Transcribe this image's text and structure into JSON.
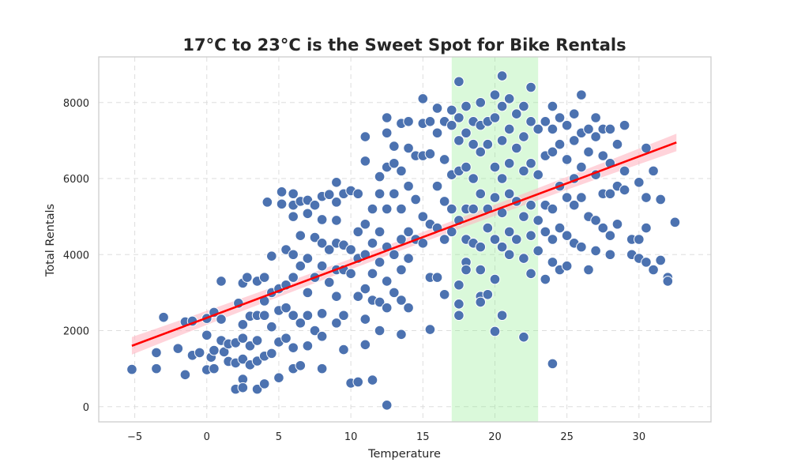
{
  "chart_data": {
    "type": "scatter",
    "title": "17°C to 23°C is the Sweet Spot for Bike Rentals",
    "xlabel": "Temperature",
    "ylabel": "Total Rentals",
    "xlim": [
      -7.5,
      35
    ],
    "ylim": [
      -400,
      9200
    ],
    "xticks": [
      -5,
      0,
      5,
      10,
      15,
      20,
      25,
      30
    ],
    "yticks": [
      0,
      2000,
      4000,
      6000,
      8000
    ],
    "grid": true,
    "highlight_band": {
      "x": [
        17,
        23
      ],
      "color": "#90ee90"
    },
    "regression_line": {
      "x": [
        -5.2,
        32.6
      ],
      "y": [
        1600,
        6950
      ],
      "color": "#ff0000"
    },
    "colors": {
      "points": "#4c72b0",
      "point_edge": "#ffffff",
      "band": "#90ee90",
      "line": "#ff0000",
      "ci": "#ffb6c1"
    },
    "points": [
      [
        -5.2,
        980
      ],
      [
        -3.0,
        2350
      ],
      [
        -3.5,
        1420
      ],
      [
        -3.5,
        1000
      ],
      [
        -2.0,
        1530
      ],
      [
        -1.5,
        840
      ],
      [
        -1.5,
        2230
      ],
      [
        -1.0,
        2250
      ],
      [
        -1.0,
        1350
      ],
      [
        -0.5,
        1420
      ],
      [
        0.0,
        970
      ],
      [
        0.0,
        1880
      ],
      [
        0.0,
        2320
      ],
      [
        0.3,
        1300
      ],
      [
        0.5,
        1000
      ],
      [
        0.5,
        2480
      ],
      [
        0.5,
        1480
      ],
      [
        1.0,
        3300
      ],
      [
        1.0,
        2300
      ],
      [
        1.0,
        1740
      ],
      [
        1.2,
        1440
      ],
      [
        1.5,
        1190
      ],
      [
        1.5,
        1650
      ],
      [
        2.0,
        460
      ],
      [
        2.0,
        1680
      ],
      [
        2.0,
        1150
      ],
      [
        2.2,
        2720
      ],
      [
        2.5,
        3250
      ],
      [
        2.5,
        2160
      ],
      [
        2.5,
        1800
      ],
      [
        2.5,
        1250
      ],
      [
        2.5,
        720
      ],
      [
        2.5,
        500
      ],
      [
        2.8,
        3400
      ],
      [
        3.0,
        2380
      ],
      [
        3.0,
        1600
      ],
      [
        3.0,
        1100
      ],
      [
        3.5,
        3300
      ],
      [
        3.5,
        2400
      ],
      [
        3.5,
        1740
      ],
      [
        3.5,
        1200
      ],
      [
        3.5,
        460
      ],
      [
        4.0,
        3400
      ],
      [
        4.0,
        2780
      ],
      [
        4.0,
        2400
      ],
      [
        4.0,
        1330
      ],
      [
        4.0,
        600
      ],
      [
        4.2,
        5380
      ],
      [
        4.5,
        3960
      ],
      [
        4.5,
        3000
      ],
      [
        4.5,
        2100
      ],
      [
        4.5,
        1400
      ],
      [
        5.0,
        3100
      ],
      [
        5.0,
        2530
      ],
      [
        5.0,
        1700
      ],
      [
        5.0,
        760
      ],
      [
        5.2,
        5650
      ],
      [
        5.2,
        5330
      ],
      [
        5.5,
        4130
      ],
      [
        5.5,
        3200
      ],
      [
        5.5,
        2600
      ],
      [
        5.5,
        1800
      ],
      [
        6.0,
        5600
      ],
      [
        6.0,
        5300
      ],
      [
        6.0,
        5000
      ],
      [
        6.0,
        4000
      ],
      [
        6.0,
        3400
      ],
      [
        6.0,
        2400
      ],
      [
        6.0,
        1550
      ],
      [
        6.0,
        1000
      ],
      [
        6.5,
        5400
      ],
      [
        6.5,
        4500
      ],
      [
        6.5,
        3700
      ],
      [
        6.5,
        2200
      ],
      [
        6.5,
        1080
      ],
      [
        7.0,
        5430
      ],
      [
        7.0,
        5080
      ],
      [
        7.0,
        3900
      ],
      [
        7.0,
        3000
      ],
      [
        7.0,
        2400
      ],
      [
        7.0,
        1600
      ],
      [
        7.5,
        5300
      ],
      [
        7.5,
        4450
      ],
      [
        7.5,
        3400
      ],
      [
        7.5,
        2000
      ],
      [
        8.0,
        5530
      ],
      [
        8.0,
        4920
      ],
      [
        8.0,
        4300
      ],
      [
        8.0,
        3700
      ],
      [
        8.0,
        2450
      ],
      [
        8.0,
        1850
      ],
      [
        8.0,
        1000
      ],
      [
        8.5,
        5580
      ],
      [
        8.5,
        4130
      ],
      [
        8.5,
        3270
      ],
      [
        9.0,
        5900
      ],
      [
        9.0,
        5380
      ],
      [
        9.0,
        4900
      ],
      [
        9.0,
        4300
      ],
      [
        9.0,
        3600
      ],
      [
        9.0,
        2900
      ],
      [
        9.0,
        2200
      ],
      [
        9.5,
        5600
      ],
      [
        9.5,
        4250
      ],
      [
        9.5,
        3600
      ],
      [
        9.5,
        2400
      ],
      [
        9.5,
        1500
      ],
      [
        10.0,
        5680
      ],
      [
        10.0,
        4130
      ],
      [
        10.0,
        3500
      ],
      [
        10.0,
        620
      ],
      [
        10.5,
        5600
      ],
      [
        10.5,
        4600
      ],
      [
        10.5,
        3900
      ],
      [
        10.5,
        2900
      ],
      [
        10.5,
        650
      ],
      [
        11.0,
        7100
      ],
      [
        11.0,
        6460
      ],
      [
        11.0,
        4800
      ],
      [
        11.0,
        4000
      ],
      [
        11.0,
        3100
      ],
      [
        11.0,
        2300
      ],
      [
        11.0,
        1630
      ],
      [
        11.5,
        5200
      ],
      [
        11.5,
        4300
      ],
      [
        11.5,
        3500
      ],
      [
        11.5,
        2800
      ],
      [
        11.5,
        700
      ],
      [
        12.0,
        6050
      ],
      [
        12.0,
        5600
      ],
      [
        12.0,
        4600
      ],
      [
        12.0,
        3800
      ],
      [
        12.0,
        2750
      ],
      [
        12.0,
        2000
      ],
      [
        12.5,
        7600
      ],
      [
        12.5,
        7200
      ],
      [
        12.5,
        6300
      ],
      [
        12.5,
        5200
      ],
      [
        12.5,
        4200
      ],
      [
        12.5,
        3300
      ],
      [
        12.5,
        2600
      ],
      [
        12.5,
        40
      ],
      [
        13.0,
        6850
      ],
      [
        13.0,
        6400
      ],
      [
        13.0,
        5600
      ],
      [
        13.0,
        4000
      ],
      [
        13.0,
        3000
      ],
      [
        13.5,
        7450
      ],
      [
        13.5,
        6200
      ],
      [
        13.5,
        5200
      ],
      [
        13.5,
        4400
      ],
      [
        13.5,
        3600
      ],
      [
        13.5,
        2800
      ],
      [
        13.5,
        1900
      ],
      [
        14.0,
        7500
      ],
      [
        14.0,
        6800
      ],
      [
        14.0,
        5800
      ],
      [
        14.0,
        4600
      ],
      [
        14.0,
        3900
      ],
      [
        14.0,
        2600
      ],
      [
        14.5,
        6600
      ],
      [
        14.5,
        5450
      ],
      [
        14.5,
        4400
      ],
      [
        15.0,
        8100
      ],
      [
        15.0,
        7450
      ],
      [
        15.0,
        6600
      ],
      [
        15.0,
        5000
      ],
      [
        15.0,
        4300
      ],
      [
        15.5,
        7500
      ],
      [
        15.5,
        6650
      ],
      [
        15.5,
        4800
      ],
      [
        15.5,
        3400
      ],
      [
        15.5,
        2030
      ],
      [
        16.0,
        7850
      ],
      [
        16.0,
        7200
      ],
      [
        16.0,
        5800
      ],
      [
        16.0,
        4700
      ],
      [
        16.0,
        3400
      ],
      [
        16.5,
        7500
      ],
      [
        16.5,
        6500
      ],
      [
        16.5,
        5400
      ],
      [
        16.5,
        4400
      ],
      [
        16.5,
        2950
      ],
      [
        17.0,
        7800
      ],
      [
        17.0,
        7400
      ],
      [
        17.0,
        6100
      ],
      [
        17.0,
        5200
      ],
      [
        17.0,
        4600
      ],
      [
        17.5,
        8550
      ],
      [
        17.5,
        7600
      ],
      [
        17.5,
        7000
      ],
      [
        17.5,
        6200
      ],
      [
        17.5,
        4900
      ],
      [
        17.5,
        3200
      ],
      [
        17.5,
        2700
      ],
      [
        17.5,
        2400
      ],
      [
        18.0,
        7900
      ],
      [
        18.0,
        7200
      ],
      [
        18.0,
        6300
      ],
      [
        18.0,
        5200
      ],
      [
        18.0,
        4400
      ],
      [
        18.0,
        3800
      ],
      [
        18.0,
        3600
      ],
      [
        18.5,
        7500
      ],
      [
        18.5,
        6900
      ],
      [
        18.5,
        6000
      ],
      [
        18.5,
        5200
      ],
      [
        18.5,
        4300
      ],
      [
        19.0,
        8000
      ],
      [
        19.0,
        7400
      ],
      [
        19.0,
        6700
      ],
      [
        19.0,
        5600
      ],
      [
        19.0,
        4200
      ],
      [
        19.0,
        3600
      ],
      [
        19.0,
        2900
      ],
      [
        19.0,
        2750
      ],
      [
        19.5,
        7500
      ],
      [
        19.5,
        6900
      ],
      [
        19.5,
        5200
      ],
      [
        19.5,
        4700
      ],
      [
        19.5,
        2950
      ],
      [
        20.0,
        8200
      ],
      [
        20.0,
        7600
      ],
      [
        20.0,
        6300
      ],
      [
        20.0,
        5500
      ],
      [
        20.0,
        4400
      ],
      [
        20.0,
        3350
      ],
      [
        20.0,
        1980
      ],
      [
        20.5,
        8700
      ],
      [
        20.5,
        7900
      ],
      [
        20.5,
        7000
      ],
      [
        20.5,
        6000
      ],
      [
        20.5,
        5100
      ],
      [
        20.5,
        4200
      ],
      [
        20.5,
        2400
      ],
      [
        21.0,
        8100
      ],
      [
        21.0,
        7300
      ],
      [
        21.0,
        6400
      ],
      [
        21.0,
        5600
      ],
      [
        21.0,
        4600
      ],
      [
        21.0,
        4000
      ],
      [
        21.5,
        7700
      ],
      [
        21.5,
        6800
      ],
      [
        21.5,
        5400
      ],
      [
        21.5,
        4400
      ],
      [
        22.0,
        7900
      ],
      [
        22.0,
        7100
      ],
      [
        22.0,
        6200
      ],
      [
        22.0,
        5000
      ],
      [
        22.0,
        3900
      ],
      [
        22.0,
        1830
      ],
      [
        22.5,
        8400
      ],
      [
        22.5,
        7500
      ],
      [
        22.5,
        6400
      ],
      [
        22.5,
        5300
      ],
      [
        22.5,
        4500
      ],
      [
        22.5,
        3500
      ],
      [
        23.0,
        7300
      ],
      [
        23.0,
        6100
      ],
      [
        23.0,
        4900
      ],
      [
        23.0,
        4100
      ],
      [
        23.5,
        7500
      ],
      [
        23.5,
        6600
      ],
      [
        23.5,
        5300
      ],
      [
        23.5,
        4600
      ],
      [
        23.5,
        3350
      ],
      [
        24.0,
        7900
      ],
      [
        24.0,
        7300
      ],
      [
        24.0,
        6700
      ],
      [
        24.0,
        5200
      ],
      [
        24.0,
        4400
      ],
      [
        24.0,
        3800
      ],
      [
        24.0,
        1130
      ],
      [
        24.5,
        7600
      ],
      [
        24.5,
        6900
      ],
      [
        24.5,
        5800
      ],
      [
        24.5,
        4700
      ],
      [
        24.5,
        3600
      ],
      [
        25.0,
        7400
      ],
      [
        25.0,
        6500
      ],
      [
        25.0,
        5500
      ],
      [
        25.0,
        4500
      ],
      [
        25.0,
        3700
      ],
      [
        25.5,
        7700
      ],
      [
        25.5,
        7000
      ],
      [
        25.5,
        6000
      ],
      [
        25.5,
        5300
      ],
      [
        25.5,
        4300
      ],
      [
        26.0,
        8200
      ],
      [
        26.0,
        7200
      ],
      [
        26.0,
        6300
      ],
      [
        26.0,
        5500
      ],
      [
        26.0,
        4200
      ],
      [
        26.5,
        7300
      ],
      [
        26.5,
        6700
      ],
      [
        26.5,
        5000
      ],
      [
        26.5,
        3600
      ],
      [
        27.0,
        7600
      ],
      [
        27.0,
        7100
      ],
      [
        27.0,
        6100
      ],
      [
        27.0,
        4900
      ],
      [
        27.0,
        4100
      ],
      [
        27.5,
        7300
      ],
      [
        27.5,
        6600
      ],
      [
        27.5,
        5600
      ],
      [
        27.5,
        4700
      ],
      [
        28.0,
        7300
      ],
      [
        28.0,
        6400
      ],
      [
        28.0,
        5600
      ],
      [
        28.0,
        4500
      ],
      [
        28.0,
        4000
      ],
      [
        28.5,
        6900
      ],
      [
        28.5,
        5800
      ],
      [
        28.5,
        4800
      ],
      [
        29.0,
        7400
      ],
      [
        29.0,
        6200
      ],
      [
        29.0,
        5700
      ],
      [
        29.5,
        4400
      ],
      [
        29.5,
        4000
      ],
      [
        30.0,
        5900
      ],
      [
        30.0,
        4400
      ],
      [
        30.0,
        3900
      ],
      [
        30.5,
        6800
      ],
      [
        30.5,
        5500
      ],
      [
        30.5,
        4700
      ],
      [
        30.5,
        3800
      ],
      [
        31.0,
        6200
      ],
      [
        31.0,
        3600
      ],
      [
        31.5,
        5450
      ],
      [
        31.5,
        3850
      ],
      [
        32.0,
        3400
      ],
      [
        32.0,
        3300
      ],
      [
        32.5,
        4850
      ]
    ]
  }
}
